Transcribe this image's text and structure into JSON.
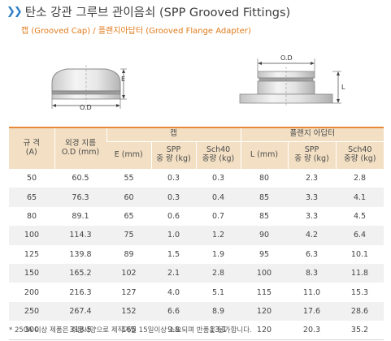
{
  "header": {
    "title": "탄소 강관 그루브 관이음쇠 (SPP Grooved Fittings)",
    "subtitle": "캡 (Grooved Cap) / 플랜지아답터 (Grooved Flange Adapter)",
    "arrow_icon": "double-chevron-right"
  },
  "diagrams": {
    "cap": {
      "od_label": "O.D",
      "e_label": "E"
    },
    "flange_adapter": {
      "od_label": "O.D",
      "l_label": "L"
    }
  },
  "table": {
    "col_size": "규 격\n(A)",
    "col_od": "외경 지름\nO.D (mm)",
    "group_cap": "캡",
    "group_flange": "플랜지 아답터",
    "cap_cols": [
      "E (mm)",
      "SPP\n중 량 (kg)",
      "Sch40\n중량 (kg)"
    ],
    "flange_cols": [
      "L (mm)",
      "SPP\n중 량 (kg)",
      "Sch40\n중량 (kg)"
    ],
    "rows": [
      [
        "50",
        "60.5",
        "55",
        "0.3",
        "0.3",
        "80",
        "2.3",
        "2.8"
      ],
      [
        "65",
        "76.3",
        "60",
        "0.3",
        "0.4",
        "85",
        "3.3",
        "4.1"
      ],
      [
        "80",
        "89.1",
        "65",
        "0.6",
        "0.7",
        "85",
        "3.3",
        "4.5"
      ],
      [
        "100",
        "114.3",
        "75",
        "1.0",
        "1.2",
        "90",
        "4.2",
        "6.4"
      ],
      [
        "125",
        "139.8",
        "89",
        "1.5",
        "1.9",
        "95",
        "6.3",
        "10.1"
      ],
      [
        "150",
        "165.2",
        "102",
        "2.1",
        "2.8",
        "100",
        "8.3",
        "11.8"
      ],
      [
        "200",
        "216.3",
        "127",
        "4.0",
        "5.1",
        "115",
        "11.0",
        "15.3"
      ],
      [
        "250",
        "267.4",
        "152",
        "6.6",
        "8.9",
        "120",
        "17.6",
        "28.6"
      ],
      [
        "300",
        "318.5",
        "165",
        "9.8",
        "13.1",
        "120",
        "20.3",
        "35.2"
      ]
    ]
  },
  "footnote": "* 250A 이상 제품은 주문사양으로 제작기일 15일이상 소요되며 반품은 불가합니다.",
  "colors": {
    "accent_blue": "#2d7ec4",
    "accent_orange": "#e07b1c",
    "header_bg": "#f3e0c4",
    "header_line": "#e8883a"
  }
}
